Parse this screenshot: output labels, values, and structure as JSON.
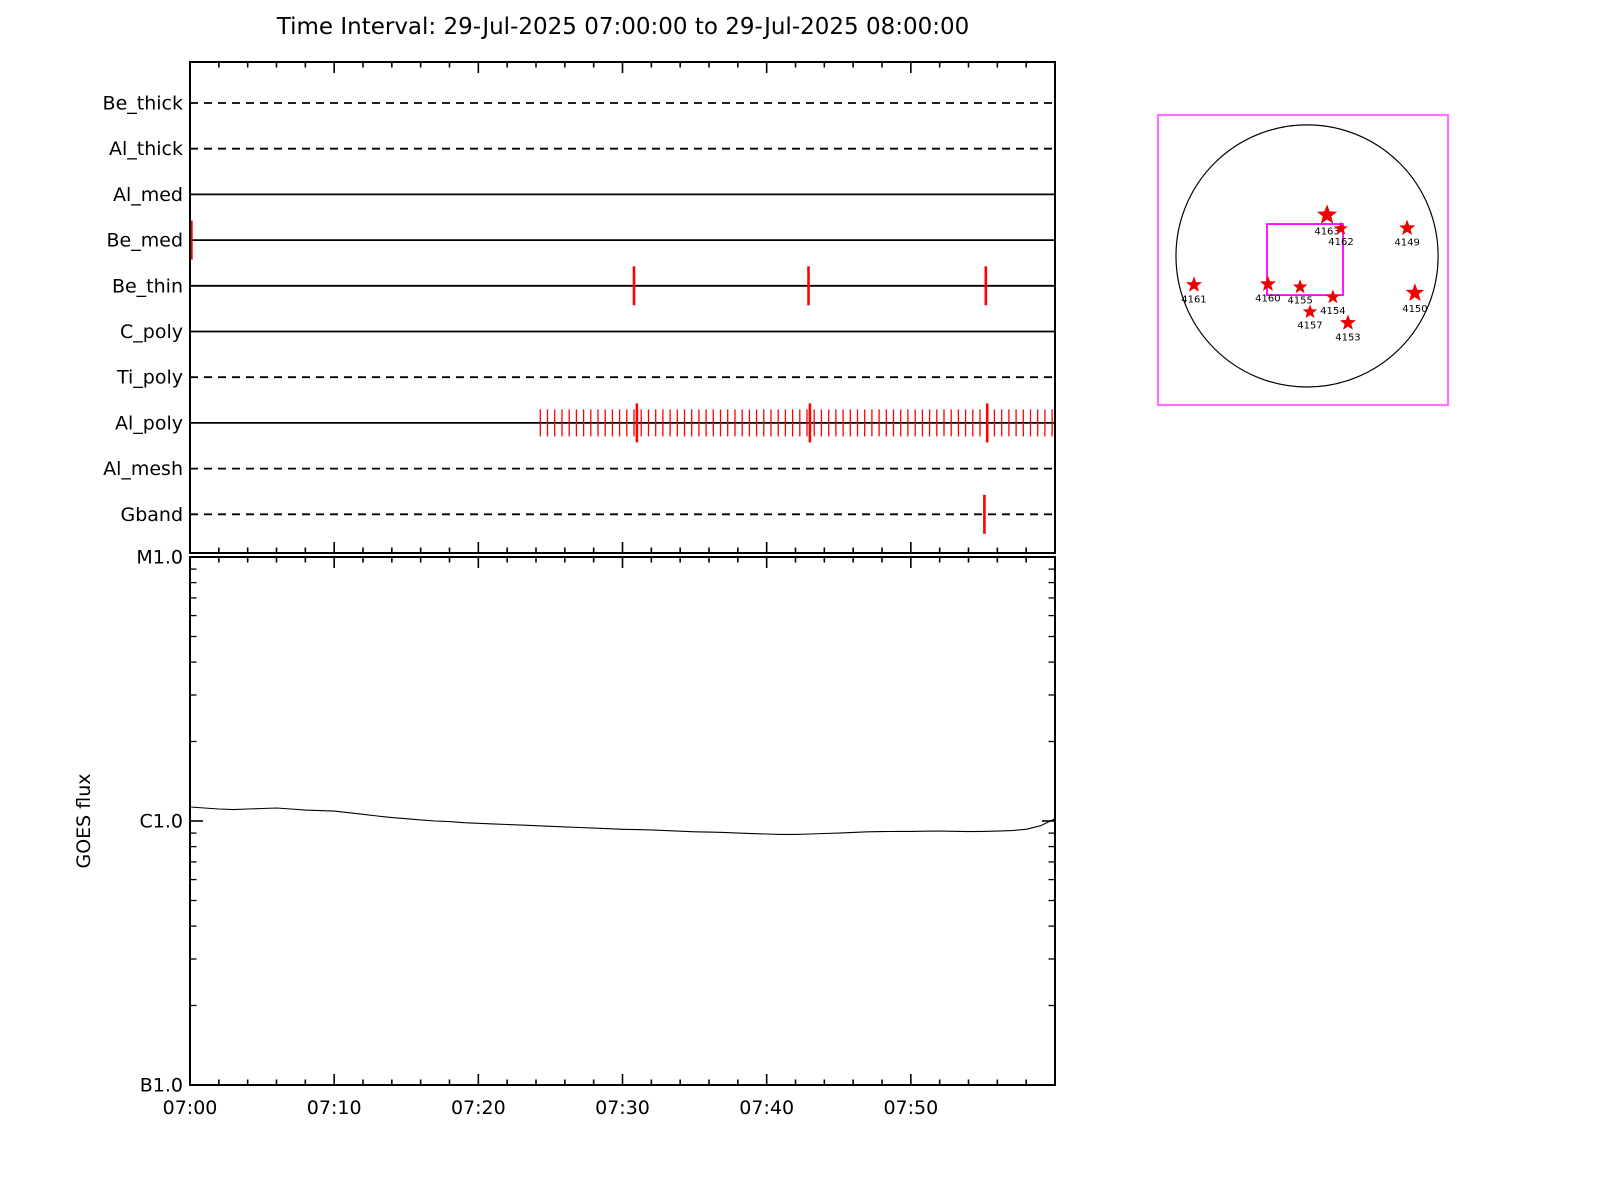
{
  "title": "Time Interval: 29-Jul-2025 07:00:00 to 29-Jul-2025 08:00:00",
  "colors": {
    "axis": "#000000",
    "goes_line": "#000000",
    "event_marker": "#ff0000",
    "inset_border": "#ff70ff",
    "fov_border": "#ff00ff",
    "star_fill": "#ee0000"
  },
  "chart_data": [
    {
      "type": "timeline",
      "name": "xrt-filter-exposure-timeline",
      "x_minutes_range": [
        0,
        60
      ],
      "x_start_time": "07:00",
      "x_end_time": "08:00",
      "x_major_tick_minutes": 10,
      "x_minor_tick_minutes": 2,
      "rows": [
        {
          "label": "Be_thick",
          "line_style": "dashed",
          "long_marks": []
        },
        {
          "label": "Al_thick",
          "line_style": "dashed",
          "long_marks": []
        },
        {
          "label": "Al_med",
          "line_style": "solid",
          "long_marks": []
        },
        {
          "label": "Be_med",
          "line_style": "solid",
          "long_marks": [
            0.1
          ]
        },
        {
          "label": "Be_thin",
          "line_style": "solid",
          "long_marks": [
            30.8,
            42.9,
            55.2
          ]
        },
        {
          "label": "C_poly",
          "line_style": "solid",
          "long_marks": []
        },
        {
          "label": "Ti_poly",
          "line_style": "dashed",
          "long_marks": []
        },
        {
          "label": "Al_poly",
          "line_style": "solid",
          "long_marks": [
            31.0,
            43.0,
            55.3
          ],
          "comb": {
            "start_minute": 24.3,
            "end_minute": 59.9,
            "step_minutes": 0.5
          }
        },
        {
          "label": "Al_mesh",
          "line_style": "dashed",
          "long_marks": []
        },
        {
          "label": "Gband",
          "line_style": "dashed",
          "long_marks": [
            55.1
          ]
        }
      ]
    },
    {
      "type": "line",
      "name": "goes-flux-panel",
      "ylabel": "GOES flux",
      "y_scale": "log",
      "y_tick_labels": [
        "M1.0",
        "C1.0",
        "B1.0"
      ],
      "y_tick_flux_c": [
        10,
        1,
        0.1
      ],
      "x_tick_labels": [
        "07:00",
        "07:10",
        "07:20",
        "07:30",
        "07:40",
        "07:50"
      ],
      "x_tick_minutes": [
        0,
        10,
        20,
        30,
        40,
        50
      ],
      "series": [
        {
          "name": "goes-xrs-long",
          "points_minute_fluxC": [
            [
              0,
              1.13
            ],
            [
              1,
              1.12
            ],
            [
              2,
              1.11
            ],
            [
              3,
              1.105
            ],
            [
              4,
              1.11
            ],
            [
              5,
              1.115
            ],
            [
              6,
              1.12
            ],
            [
              7,
              1.11
            ],
            [
              8,
              1.1
            ],
            [
              9,
              1.095
            ],
            [
              10,
              1.09
            ],
            [
              11,
              1.075
            ],
            [
              12,
              1.06
            ],
            [
              13,
              1.045
            ],
            [
              14,
              1.03
            ],
            [
              15,
              1.02
            ],
            [
              16,
              1.01
            ],
            [
              17,
              1.0
            ],
            [
              18,
              0.995
            ],
            [
              19,
              0.985
            ],
            [
              20,
              0.98
            ],
            [
              21,
              0.975
            ],
            [
              22,
              0.97
            ],
            [
              23,
              0.965
            ],
            [
              24,
              0.96
            ],
            [
              25,
              0.955
            ],
            [
              26,
              0.95
            ],
            [
              27,
              0.945
            ],
            [
              28,
              0.94
            ],
            [
              29,
              0.935
            ],
            [
              30,
              0.93
            ],
            [
              31,
              0.928
            ],
            [
              32,
              0.925
            ],
            [
              33,
              0.92
            ],
            [
              34,
              0.915
            ],
            [
              35,
              0.91
            ],
            [
              36,
              0.908
            ],
            [
              37,
              0.905
            ],
            [
              38,
              0.9
            ],
            [
              39,
              0.896
            ],
            [
              40,
              0.893
            ],
            [
              41,
              0.89
            ],
            [
              42,
              0.89
            ],
            [
              43,
              0.893
            ],
            [
              44,
              0.897
            ],
            [
              45,
              0.9
            ],
            [
              46,
              0.905
            ],
            [
              47,
              0.91
            ],
            [
              48,
              0.912
            ],
            [
              49,
              0.913
            ],
            [
              50,
              0.913
            ],
            [
              51,
              0.915
            ],
            [
              52,
              0.916
            ],
            [
              53,
              0.914
            ],
            [
              54,
              0.912
            ],
            [
              55,
              0.913
            ],
            [
              56,
              0.916
            ],
            [
              57,
              0.92
            ],
            [
              58,
              0.93
            ],
            [
              59,
              0.96
            ],
            [
              60,
              1.02
            ]
          ]
        }
      ]
    },
    {
      "type": "scatter",
      "name": "solar-disk-context",
      "disk": {
        "cx": 0.514,
        "cy": 0.486,
        "r": 0.452
      },
      "fov": {
        "x": 0.376,
        "y": 0.376,
        "w": 0.262,
        "h": 0.245
      },
      "regions": [
        {
          "label": "4163",
          "x": 0.583,
          "y": 0.345,
          "size": 1.25
        },
        {
          "label": "4162",
          "x": 0.631,
          "y": 0.392,
          "size": 0.85
        },
        {
          "label": "4149",
          "x": 0.859,
          "y": 0.39,
          "size": 1.0
        },
        {
          "label": "4161",
          "x": 0.124,
          "y": 0.586,
          "size": 1.0
        },
        {
          "label": "4160",
          "x": 0.379,
          "y": 0.583,
          "size": 1.0
        },
        {
          "label": "4155",
          "x": 0.49,
          "y": 0.593,
          "size": 0.9
        },
        {
          "label": "4154",
          "x": 0.603,
          "y": 0.628,
          "size": 0.9
        },
        {
          "label": "4157",
          "x": 0.524,
          "y": 0.679,
          "size": 0.9
        },
        {
          "label": "4153",
          "x": 0.655,
          "y": 0.717,
          "size": 1.0
        },
        {
          "label": "4150",
          "x": 0.886,
          "y": 0.614,
          "size": 1.15
        }
      ]
    }
  ]
}
